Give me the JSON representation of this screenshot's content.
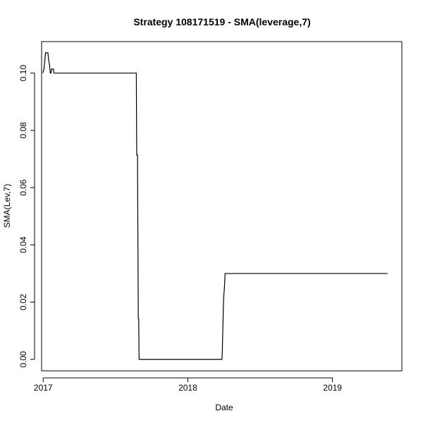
{
  "chart_data": {
    "type": "line",
    "title": "Strategy 108171519 - SMA(leverage,7)",
    "xlabel": "Date",
    "ylabel": "SMA(Lev,7)",
    "x_ticks": [
      "2017",
      "2018",
      "2019"
    ],
    "y_ticks": [
      "0.00",
      "0.02",
      "0.04",
      "0.06",
      "0.08",
      "0.10"
    ],
    "xlim": [
      "2016-12-28",
      "2019-06-25"
    ],
    "ylim": [
      -0.004,
      0.111
    ],
    "grid": false,
    "series": [
      {
        "color": "#000000",
        "points": [
          [
            "2016-12-31",
            0.1
          ],
          [
            "2017-01-03",
            0.1014
          ],
          [
            "2017-01-04",
            0.1029
          ],
          [
            "2017-01-05",
            0.1043
          ],
          [
            "2017-01-06",
            0.1057
          ],
          [
            "2017-01-07",
            0.1071
          ],
          [
            "2017-01-13",
            0.1071
          ],
          [
            "2017-01-14",
            0.1057
          ],
          [
            "2017-01-15",
            0.1043
          ],
          [
            "2017-01-17",
            0.1029
          ],
          [
            "2017-01-18",
            0.1014
          ],
          [
            "2017-01-19",
            0.1
          ],
          [
            "2017-01-21",
            0.1
          ],
          [
            "2017-01-22",
            0.1014
          ],
          [
            "2017-01-27",
            0.1014
          ],
          [
            "2017-01-28",
            0.1
          ],
          [
            "2017-08-24",
            0.1
          ],
          [
            "2017-08-25",
            0.0714
          ],
          [
            "2017-08-27",
            0.0714
          ],
          [
            "2017-08-28",
            0.0429
          ],
          [
            "2017-08-29",
            0.0143
          ],
          [
            "2017-08-30",
            0.0143
          ],
          [
            "2017-08-31",
            0.0
          ],
          [
            "2018-03-28",
            0.0
          ],
          [
            "2018-03-29",
            0.0029
          ],
          [
            "2018-03-30",
            0.0086
          ],
          [
            "2018-03-31",
            0.0143
          ],
          [
            "2018-04-01",
            0.02
          ],
          [
            "2018-04-02",
            0.0229
          ],
          [
            "2018-04-03",
            0.0243
          ],
          [
            "2018-04-04",
            0.0271
          ],
          [
            "2018-04-05",
            0.03
          ],
          [
            "2019-05-20",
            0.03
          ]
        ]
      }
    ]
  }
}
